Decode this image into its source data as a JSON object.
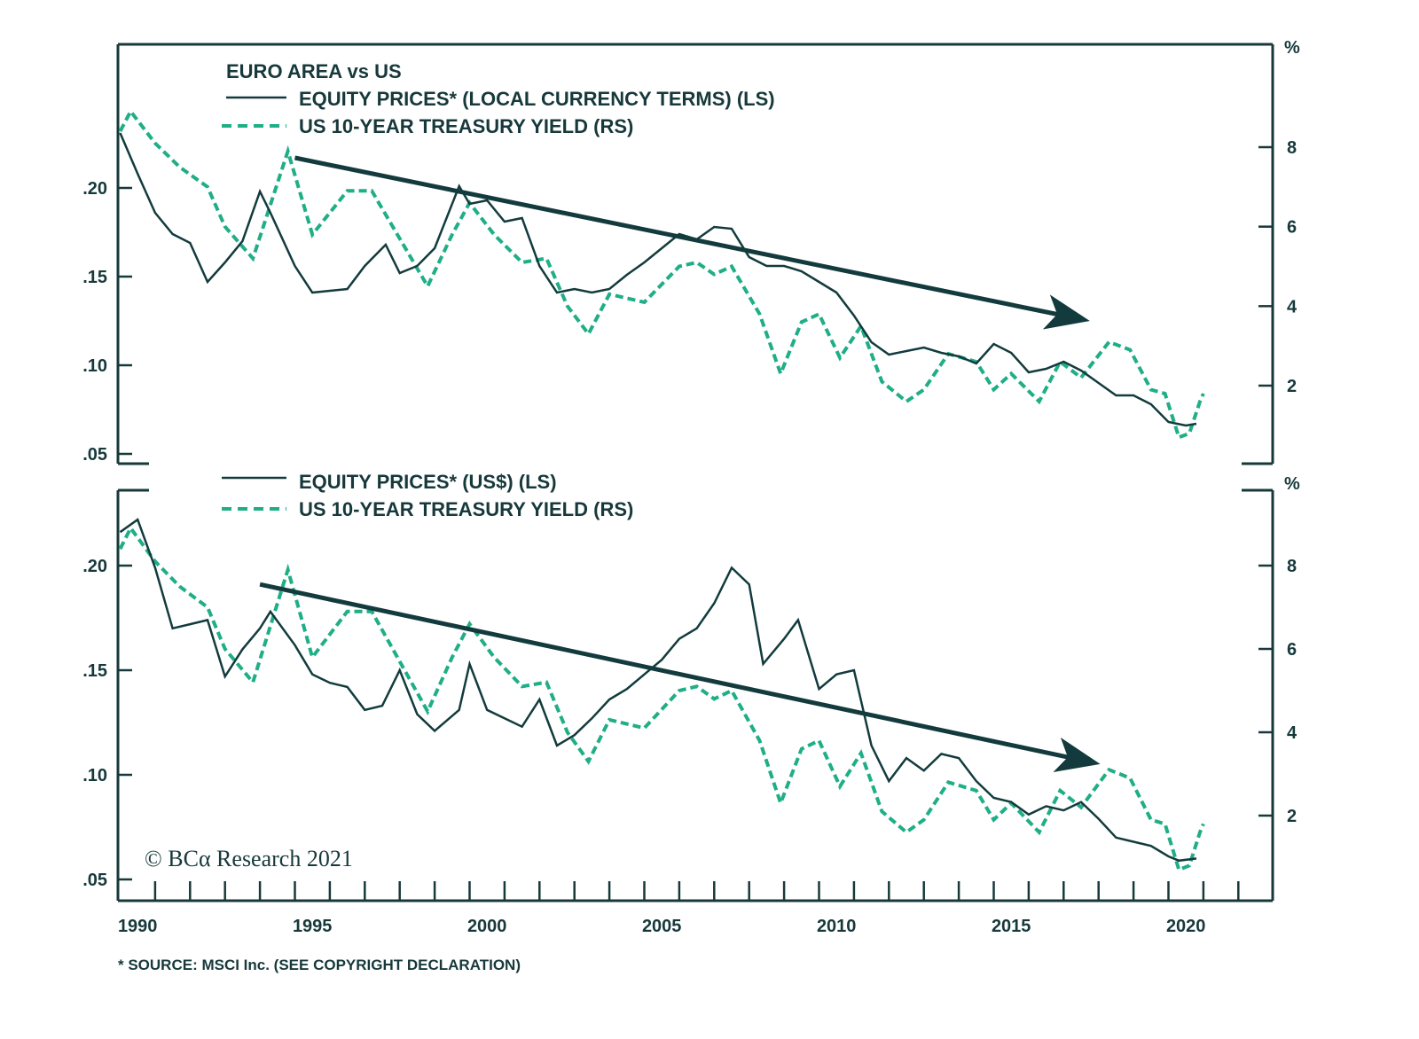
{
  "chart_data": {
    "type": "line",
    "title": "EURO AREA vs US",
    "copyright": "© BCα Research 2021",
    "footnote": "* SOURCE: MSCI Inc. (SEE COPYRIGHT DECLARATION)",
    "colors": {
      "equity": "#133b3d",
      "yield": "#1fae86",
      "frame": "#17393b",
      "arrow": "#133b3d"
    },
    "x_axis": {
      "ticks": [
        "1990",
        "1995",
        "2000",
        "2005",
        "2010",
        "2015",
        "2020"
      ],
      "range": [
        1990,
        2023
      ]
    },
    "yield_series": {
      "name": "US 10-YEAR TREASURY YIELD (RS)",
      "x": [
        1990.0,
        1990.3,
        1991.0,
        1991.7,
        1992.5,
        1993.0,
        1993.8,
        1994.8,
        1995.5,
        1996.5,
        1997.2,
        1998.0,
        1998.8,
        1999.5,
        2000.0,
        2000.7,
        2001.5,
        2002.2,
        2002.8,
        2003.4,
        2004.0,
        2005.0,
        2006.0,
        2006.5,
        2007.0,
        2007.5,
        2008.3,
        2008.9,
        2009.5,
        2010.0,
        2010.6,
        2011.2,
        2011.8,
        2012.5,
        2013.0,
        2013.7,
        2014.5,
        2015.0,
        2015.5,
        2016.3,
        2016.9,
        2017.5,
        2018.3,
        2018.9,
        2019.5,
        2019.9,
        2020.3,
        2020.6,
        2020.9,
        2021.0
      ],
      "values": [
        8.4,
        8.9,
        8.1,
        7.5,
        7.0,
        6.0,
        5.2,
        7.9,
        5.8,
        6.9,
        6.9,
        5.7,
        4.5,
        5.8,
        6.6,
        5.8,
        5.1,
        5.2,
        4.0,
        3.3,
        4.3,
        4.1,
        5.0,
        5.1,
        4.8,
        5.0,
        3.8,
        2.3,
        3.6,
        3.8,
        2.7,
        3.5,
        2.1,
        1.6,
        1.9,
        2.8,
        2.6,
        1.9,
        2.3,
        1.6,
        2.6,
        2.2,
        3.1,
        2.9,
        1.9,
        1.8,
        0.7,
        0.8,
        1.6,
        1.8
      ]
    },
    "panels": [
      {
        "id": "top",
        "heading": "EURO AREA vs US",
        "legend": [
          {
            "label": "EQUITY PRICES* (LOCAL CURRENCY TERMS) (LS)",
            "style": "solid"
          },
          {
            "label": "US 10-YEAR TREASURY YIELD (RS)",
            "style": "dashed"
          }
        ],
        "left_axis": {
          "ticks": [
            ".05",
            ".10",
            ".15",
            ".20"
          ],
          "tick_values": [
            0.05,
            0.1,
            0.15,
            0.2
          ],
          "range": [
            0.04,
            0.25
          ]
        },
        "right_axis": {
          "unit": "%",
          "ticks": [
            "2",
            "4",
            "6",
            "8"
          ],
          "tick_values": [
            2,
            4,
            6,
            8
          ],
          "range": [
            0.2,
            10.5
          ]
        },
        "equity_series": {
          "name": "EQUITY PRICES* (LOCAL CURRENCY TERMS) (LS)",
          "x": [
            1990.0,
            1990.5,
            1991.0,
            1991.5,
            1992.0,
            1992.5,
            1993.0,
            1993.5,
            1994.0,
            1994.3,
            1995.0,
            1995.5,
            1996.5,
            1997.0,
            1997.6,
            1998.0,
            1998.5,
            1999.0,
            1999.7,
            2000.0,
            2000.5,
            2001.0,
            2001.5,
            2002.0,
            2002.5,
            2003.0,
            2003.5,
            2004.0,
            2004.5,
            2005.0,
            2005.5,
            2006.0,
            2006.5,
            2007.0,
            2007.5,
            2008.0,
            2008.5,
            2009.0,
            2009.5,
            2010.0,
            2010.5,
            2011.0,
            2011.5,
            2012.0,
            2012.5,
            2013.0,
            2013.5,
            2014.0,
            2014.5,
            2015.0,
            2015.5,
            2016.0,
            2016.5,
            2017.0,
            2017.5,
            2018.0,
            2018.5,
            2019.0,
            2019.5,
            2020.0,
            2020.5,
            2020.8
          ],
          "values": [
            0.231,
            0.208,
            0.186,
            0.174,
            0.169,
            0.147,
            0.158,
            0.17,
            0.198,
            0.186,
            0.156,
            0.141,
            0.143,
            0.156,
            0.168,
            0.152,
            0.156,
            0.166,
            0.201,
            0.191,
            0.193,
            0.181,
            0.183,
            0.156,
            0.141,
            0.143,
            0.141,
            0.143,
            0.151,
            0.158,
            0.166,
            0.174,
            0.171,
            0.178,
            0.177,
            0.161,
            0.156,
            0.156,
            0.153,
            0.147,
            0.141,
            0.128,
            0.113,
            0.106,
            0.108,
            0.11,
            0.107,
            0.105,
            0.101,
            0.112,
            0.107,
            0.096,
            0.098,
            0.102,
            0.097,
            0.09,
            0.083,
            0.083,
            0.078,
            0.068,
            0.066,
            0.067
          ]
        },
        "trend_arrow": {
          "from": [
            1995.0,
            0.217
          ],
          "to": [
            2017.5,
            0.126
          ],
          "direction": "down"
        }
      },
      {
        "id": "bottom",
        "heading": "",
        "legend": [
          {
            "label": "EQUITY PRICES* (US$) (LS)",
            "style": "solid"
          },
          {
            "label": "US 10-YEAR TREASURY YIELD (RS)",
            "style": "dashed"
          }
        ],
        "left_axis": {
          "ticks": [
            ".05",
            ".10",
            ".15",
            ".20"
          ],
          "tick_values": [
            0.05,
            0.1,
            0.15,
            0.2
          ],
          "range": [
            0.04,
            0.24
          ]
        },
        "right_axis": {
          "unit": "%",
          "ticks": [
            "2",
            "4",
            "6",
            "8"
          ],
          "tick_values": [
            2,
            4,
            6,
            8
          ],
          "range": [
            0.2,
            10.0
          ]
        },
        "equity_series": {
          "name": "EQUITY PRICES* (US$) (LS)",
          "x": [
            1990.0,
            1990.5,
            1991.0,
            1991.5,
            1992.0,
            1992.5,
            1993.0,
            1993.5,
            1994.0,
            1994.3,
            1995.0,
            1995.5,
            1996.0,
            1996.5,
            1997.0,
            1997.5,
            1998.0,
            1998.5,
            1999.0,
            1999.7,
            2000.0,
            2000.5,
            2001.0,
            2001.5,
            2002.0,
            2002.5,
            2003.0,
            2003.5,
            2004.0,
            2004.5,
            2005.0,
            2005.5,
            2006.0,
            2006.5,
            2007.0,
            2007.5,
            2008.0,
            2008.4,
            2009.0,
            2009.4,
            2010.0,
            2010.5,
            2011.0,
            2011.5,
            2012.0,
            2012.5,
            2013.0,
            2013.5,
            2014.0,
            2014.5,
            2015.0,
            2015.5,
            2016.0,
            2016.5,
            2017.0,
            2017.5,
            2018.0,
            2018.5,
            2019.0,
            2019.5,
            2020.0,
            2020.3,
            2020.8
          ],
          "values": [
            0.216,
            0.222,
            0.199,
            0.17,
            0.172,
            0.174,
            0.147,
            0.16,
            0.17,
            0.178,
            0.162,
            0.148,
            0.144,
            0.142,
            0.131,
            0.133,
            0.15,
            0.129,
            0.121,
            0.131,
            0.153,
            0.131,
            0.127,
            0.123,
            0.136,
            0.114,
            0.119,
            0.127,
            0.136,
            0.141,
            0.148,
            0.155,
            0.165,
            0.17,
            0.182,
            0.199,
            0.191,
            0.153,
            0.165,
            0.174,
            0.141,
            0.148,
            0.15,
            0.114,
            0.097,
            0.108,
            0.102,
            0.11,
            0.108,
            0.097,
            0.089,
            0.087,
            0.081,
            0.085,
            0.083,
            0.087,
            0.079,
            0.07,
            0.068,
            0.066,
            0.061,
            0.059,
            0.06
          ]
        },
        "trend_arrow": {
          "from": [
            1994.0,
            0.191
          ],
          "to": [
            2017.8,
            0.106
          ],
          "direction": "down"
        }
      }
    ]
  }
}
